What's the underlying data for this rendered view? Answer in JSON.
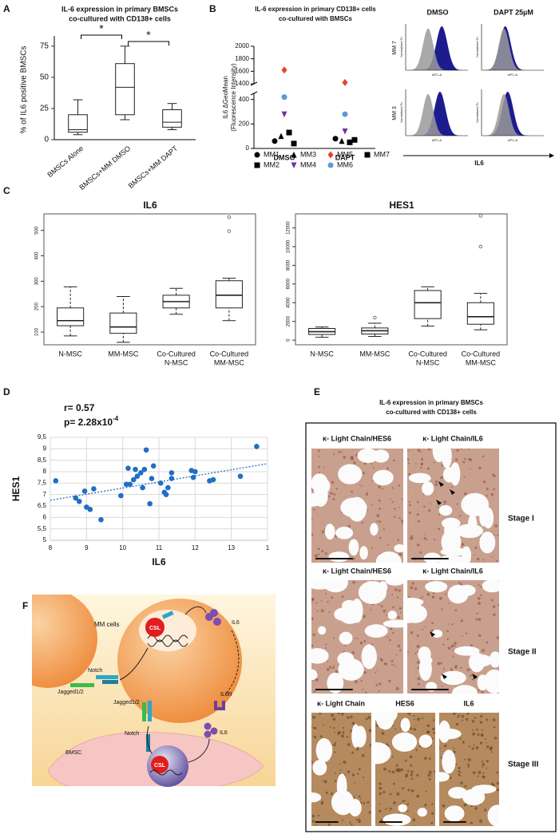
{
  "panel_letters": [
    "A",
    "B",
    "C",
    "D",
    "E",
    "F"
  ],
  "chart_data": [
    {
      "type": "box",
      "title": [
        "IL-6 expression in primary BMSCs",
        "co-cultured with CD138+ cells"
      ],
      "ylabel": "% of IL6 positive BMSCs",
      "categories": [
        [
          "BMSCs Alone"
        ],
        [
          "BMSCs+MM DMSO"
        ],
        [
          "BMSCs+MM DAPT"
        ]
      ],
      "min": [
        4,
        16,
        8
      ],
      "q1": [
        6,
        20,
        10
      ],
      "median": [
        8,
        42,
        14
      ],
      "q3": [
        20,
        61,
        24
      ],
      "max": [
        32,
        75,
        29
      ],
      "ylim": [
        0,
        80
      ],
      "yticks": [
        0,
        25,
        50,
        75
      ],
      "annotations": [
        "*",
        "*"
      ],
      "color": "#ffffff"
    },
    {
      "type": "dot",
      "title": [
        "IL-6 expression in primary CD138+ cells",
        "co-cultured with  BMSCs"
      ],
      "ylabel": [
        "IL6 ΔGeoMean",
        "(Fluorescence Intensity)"
      ],
      "categories": [
        "DMSO",
        "DAPT"
      ],
      "series": [
        {
          "name": "MM1",
          "color": "#000000",
          "marker": "circle",
          "values": [
            60,
            80
          ]
        },
        {
          "name": "MM2",
          "color": "#000000",
          "marker": "square",
          "values": [
            130,
            50
          ]
        },
        {
          "name": "MM3",
          "color": "#000000",
          "marker": "triangle",
          "values": [
            100,
            60
          ]
        },
        {
          "name": "MM4",
          "color": "#7030a0",
          "marker": "triangle-down",
          "values": [
            280,
            140
          ]
        },
        {
          "name": "MM5",
          "color": "#e8412c",
          "marker": "diamond",
          "values": [
            1620,
            1420
          ]
        },
        {
          "name": "MM6",
          "color": "#5b9bd5",
          "marker": "circle",
          "values": [
            420,
            280
          ]
        },
        {
          "name": "MM7",
          "color": "#000000",
          "marker": "square",
          "values": [
            40,
            70
          ]
        }
      ],
      "ylim": [
        0,
        2000
      ],
      "ybreak": [
        450,
        1400
      ],
      "yticks": [
        0,
        200,
        400,
        1400,
        1600,
        1800,
        2000
      ]
    },
    {
      "type": "box",
      "title": "IL6",
      "categories": [
        [
          "N-MSC"
        ],
        [
          "MM-MSC"
        ],
        [
          "Co-Cultured",
          "N-MSC"
        ],
        [
          "Co-Cultured",
          "MM-MSC"
        ]
      ],
      "min": [
        85,
        60,
        170,
        145
      ],
      "q1": [
        125,
        95,
        195,
        195
      ],
      "median": [
        145,
        120,
        220,
        245
      ],
      "q3": [
        195,
        175,
        245,
        302
      ],
      "max": [
        278,
        240,
        272,
        312
      ],
      "outliers": [
        [],
        [],
        [],
        [
          497,
          552
        ]
      ],
      "ylim": [
        50,
        565
      ],
      "yticks": [
        100,
        200,
        300,
        400,
        500
      ],
      "color": "#ffffff"
    },
    {
      "type": "box",
      "title": "HES1",
      "categories": [
        [
          "N-MSC"
        ],
        [
          "MM-MSC"
        ],
        [
          "Co-Cultured",
          "N-MSC"
        ],
        [
          "Co-Cultured",
          "MM-MSC"
        ]
      ],
      "min": [
        300,
        400,
        1500,
        1100
      ],
      "q1": [
        600,
        650,
        2300,
        1700
      ],
      "median": [
        900,
        1000,
        4000,
        2500
      ],
      "q3": [
        1250,
        1300,
        5300,
        4000
      ],
      "max": [
        1400,
        1800,
        5700,
        5000
      ],
      "outliers": [
        [],
        [
          2400
        ],
        [],
        [
          10000,
          13300
        ]
      ],
      "ylim": [
        -500,
        13500
      ],
      "yticks": [
        0,
        2000,
        4000,
        6000,
        8000,
        10000,
        12000
      ],
      "color": "#ffffff"
    },
    {
      "type": "scatter",
      "annotations": [
        "r= 0.57",
        "p= 2.28x10"
      ],
      "annotation_exponent": "-4",
      "xlabel": "IL6",
      "ylabel": "HES1",
      "x": [
        8.15,
        8.7,
        8.8,
        8.95,
        9.0,
        9.1,
        9.2,
        9.4,
        9.95,
        10.1,
        10.15,
        10.2,
        10.3,
        10.35,
        10.4,
        10.5,
        10.55,
        10.6,
        10.65,
        10.75,
        10.8,
        10.85,
        11.05,
        11.15,
        11.2,
        11.25,
        11.35,
        11.35,
        11.9,
        11.95,
        12.0,
        12.4,
        12.5,
        13.25,
        13.7
      ],
      "y": [
        7.6,
        6.85,
        6.7,
        7.15,
        6.45,
        6.35,
        7.25,
        5.9,
        6.95,
        7.45,
        8.15,
        7.45,
        7.65,
        8.1,
        7.8,
        7.95,
        7.3,
        8.1,
        8.95,
        6.6,
        7.7,
        8.25,
        7.5,
        7.1,
        7.0,
        7.3,
        7.7,
        7.95,
        8.05,
        7.75,
        8.0,
        7.6,
        7.65,
        7.8,
        9.1
      ],
      "trendline": {
        "x": [
          8,
          14
        ],
        "y": [
          6.75,
          8.35
        ]
      },
      "xlim": [
        8,
        14
      ],
      "ylim": [
        5,
        9.5
      ],
      "xticks": [
        8,
        9,
        10,
        11,
        12,
        13,
        {
          "value": 14,
          "label": "1"
        }
      ],
      "yticks": [
        5,
        {
          "value": 5.5,
          "label": "5,5"
        },
        6,
        {
          "value": 6.5,
          "label": "6,5"
        },
        7,
        {
          "value": 7.5,
          "label": "7,5"
        },
        8,
        {
          "value": 8.5,
          "label": "8,5"
        },
        9,
        {
          "value": 9.5,
          "label": "9,5"
        }
      ],
      "grid": true,
      "color": "#1f6fc5"
    }
  ],
  "flow_cytometry": {
    "columns": [
      "DMSO",
      "DAPT 25µM"
    ],
    "rows": [
      "MM 7",
      "MM 3"
    ],
    "y_axis_label": "Normalized To",
    "x_axis_label": "APC-A",
    "axis_label": "IL6"
  },
  "histology": {
    "title": [
      "IL-6 expression in primary BMSCs",
      "co-cultured with CD138+ cells"
    ],
    "row_labels": [
      [
        "κ- Light Chain/HES6",
        "κ- Light Chain/IL6"
      ],
      [
        "κ- Light Chain/HES6",
        "κ- Light Chain/IL6"
      ],
      [
        "κ- Light Chain",
        "HES6",
        "IL6"
      ]
    ],
    "stages": [
      "Stage I",
      "Stage II",
      "Stage III"
    ]
  },
  "diagram": {
    "labels": [
      "MM cells",
      "CSL",
      "IL6",
      "Notch",
      "Jagged1/2",
      "IL6R",
      "Jagged1/2",
      "Notch",
      "IL6",
      "BMSC",
      "CSL"
    ]
  }
}
